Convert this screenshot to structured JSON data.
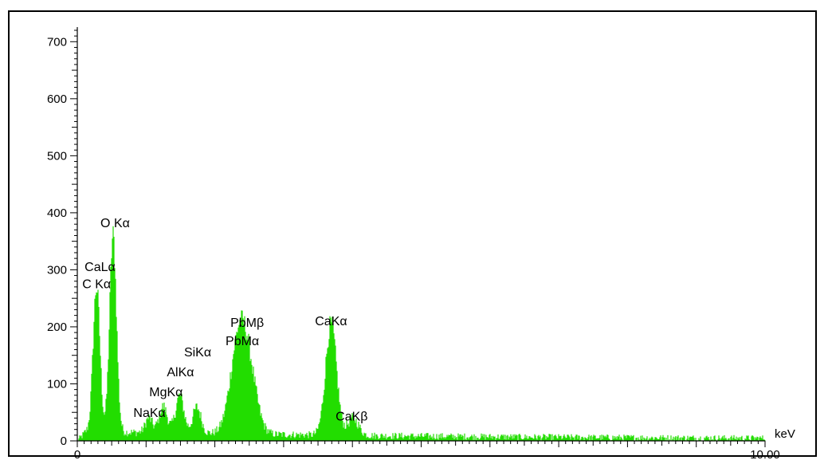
{
  "chart_data": {
    "type": "area",
    "title": "",
    "xlabel": "keV",
    "ylabel": "",
    "xlim": [
      0,
      10
    ],
    "ylim": [
      0,
      720
    ],
    "x_ticks_labeled": [
      {
        "value": 0,
        "label": "0"
      },
      {
        "value": 10,
        "label": "10.00"
      }
    ],
    "y_ticks_labeled": [
      {
        "value": 0,
        "label": "0"
      },
      {
        "value": 100,
        "label": "100"
      },
      {
        "value": 200,
        "label": "200"
      },
      {
        "value": 300,
        "label": "300"
      },
      {
        "value": 400,
        "label": "400"
      },
      {
        "value": 500,
        "label": "500"
      },
      {
        "value": 600,
        "label": "600"
      },
      {
        "value": 700,
        "label": "700"
      }
    ],
    "series": [
      {
        "color": "#22dd00",
        "peaks": [
          {
            "x": 0.28,
            "y": 255,
            "width": 0.05
          },
          {
            "x": 0.52,
            "y": 345,
            "width": 0.05
          },
          {
            "x": 1.04,
            "y": 25,
            "width": 0.05
          },
          {
            "x": 1.25,
            "y": 45,
            "width": 0.06
          },
          {
            "x": 1.49,
            "y": 65,
            "width": 0.06
          },
          {
            "x": 1.74,
            "y": 45,
            "width": 0.06
          },
          {
            "x": 2.34,
            "y": 145,
            "width": 0.12
          },
          {
            "x": 2.49,
            "y": 95,
            "width": 0.12
          },
          {
            "x": 3.69,
            "y": 195,
            "width": 0.08
          },
          {
            "x": 4.01,
            "y": 30,
            "width": 0.08
          }
        ],
        "background_level": 12
      }
    ],
    "annotations": [
      {
        "text": "O Kα",
        "x": 0.55,
        "y": 375
      },
      {
        "text": "CaLα",
        "x": 0.33,
        "y": 298
      },
      {
        "text": "C Kα",
        "x": 0.28,
        "y": 268
      },
      {
        "text": "NaKα",
        "x": 1.05,
        "y": 42
      },
      {
        "text": "MgKα",
        "x": 1.29,
        "y": 78
      },
      {
        "text": "AlKα",
        "x": 1.5,
        "y": 113
      },
      {
        "text": "SiKα",
        "x": 1.75,
        "y": 148
      },
      {
        "text": "PbMβ",
        "x": 2.47,
        "y": 200
      },
      {
        "text": "PbMα",
        "x": 2.4,
        "y": 168
      },
      {
        "text": "CaKα",
        "x": 3.69,
        "y": 203
      },
      {
        "text": "CaKβ",
        "x": 3.99,
        "y": 36
      }
    ]
  }
}
